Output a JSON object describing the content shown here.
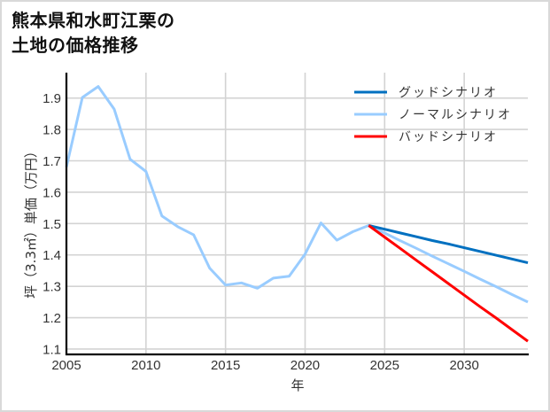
{
  "title": {
    "line1": "熊本県和水町江栗の",
    "line2": "土地の価格推移"
  },
  "colors": {
    "good": "#0070C0",
    "normal": "#99CCFF",
    "bad": "#FF0000",
    "grid": "#d3d3d3",
    "axis": "#000000",
    "frame": "#d9d9d9"
  },
  "chart_data": {
    "type": "line",
    "title": "熊本県和水町江栗の土地の価格推移",
    "xlabel": "年",
    "ylabel": "坪（3.3㎡）単価（万円）",
    "xlim": [
      2005,
      2034
    ],
    "ylim": [
      1.083,
      1.981
    ],
    "grid": true,
    "legend_position": "upper right",
    "xticks": [
      2005,
      2010,
      2015,
      2020,
      2025,
      2030
    ],
    "yticks": [
      1.1,
      1.2,
      1.3,
      1.4,
      1.5,
      1.6,
      1.7,
      1.8,
      1.9
    ],
    "series": [
      {
        "name": "グッドシナリオ",
        "color": "#0070C0",
        "x": [
          2024,
          2025,
          2026,
          2027,
          2028,
          2029,
          2030,
          2031,
          2032,
          2033,
          2034
        ],
        "y": [
          1.494,
          1.482,
          1.47,
          1.458,
          1.446,
          1.435,
          1.423,
          1.411,
          1.399,
          1.387,
          1.375
        ]
      },
      {
        "name": "ノーマルシナリオ",
        "color": "#99CCFF",
        "x": [
          2005,
          2006,
          2007,
          2008,
          2009,
          2010,
          2011,
          2012,
          2013,
          2014,
          2015,
          2016,
          2017,
          2018,
          2019,
          2020,
          2021,
          2022,
          2023,
          2024,
          2025,
          2026,
          2027,
          2028,
          2029,
          2030,
          2031,
          2032,
          2033,
          2034
        ],
        "y": [
          1.68,
          1.902,
          1.937,
          1.865,
          1.705,
          1.666,
          1.524,
          1.49,
          1.464,
          1.358,
          1.304,
          1.311,
          1.294,
          1.326,
          1.332,
          1.403,
          1.502,
          1.447,
          1.474,
          1.494,
          1.47,
          1.445,
          1.421,
          1.396,
          1.372,
          1.348,
          1.323,
          1.299,
          1.274,
          1.25
        ]
      },
      {
        "name": "バッドシナリオ",
        "color": "#FF0000",
        "x": [
          2024,
          2025,
          2026,
          2027,
          2028,
          2029,
          2030,
          2031,
          2032,
          2033,
          2034
        ],
        "y": [
          1.494,
          1.457,
          1.42,
          1.383,
          1.346,
          1.309,
          1.272,
          1.235,
          1.199,
          1.162,
          1.125
        ]
      }
    ],
    "draw_order": [
      1,
      0,
      2
    ]
  }
}
